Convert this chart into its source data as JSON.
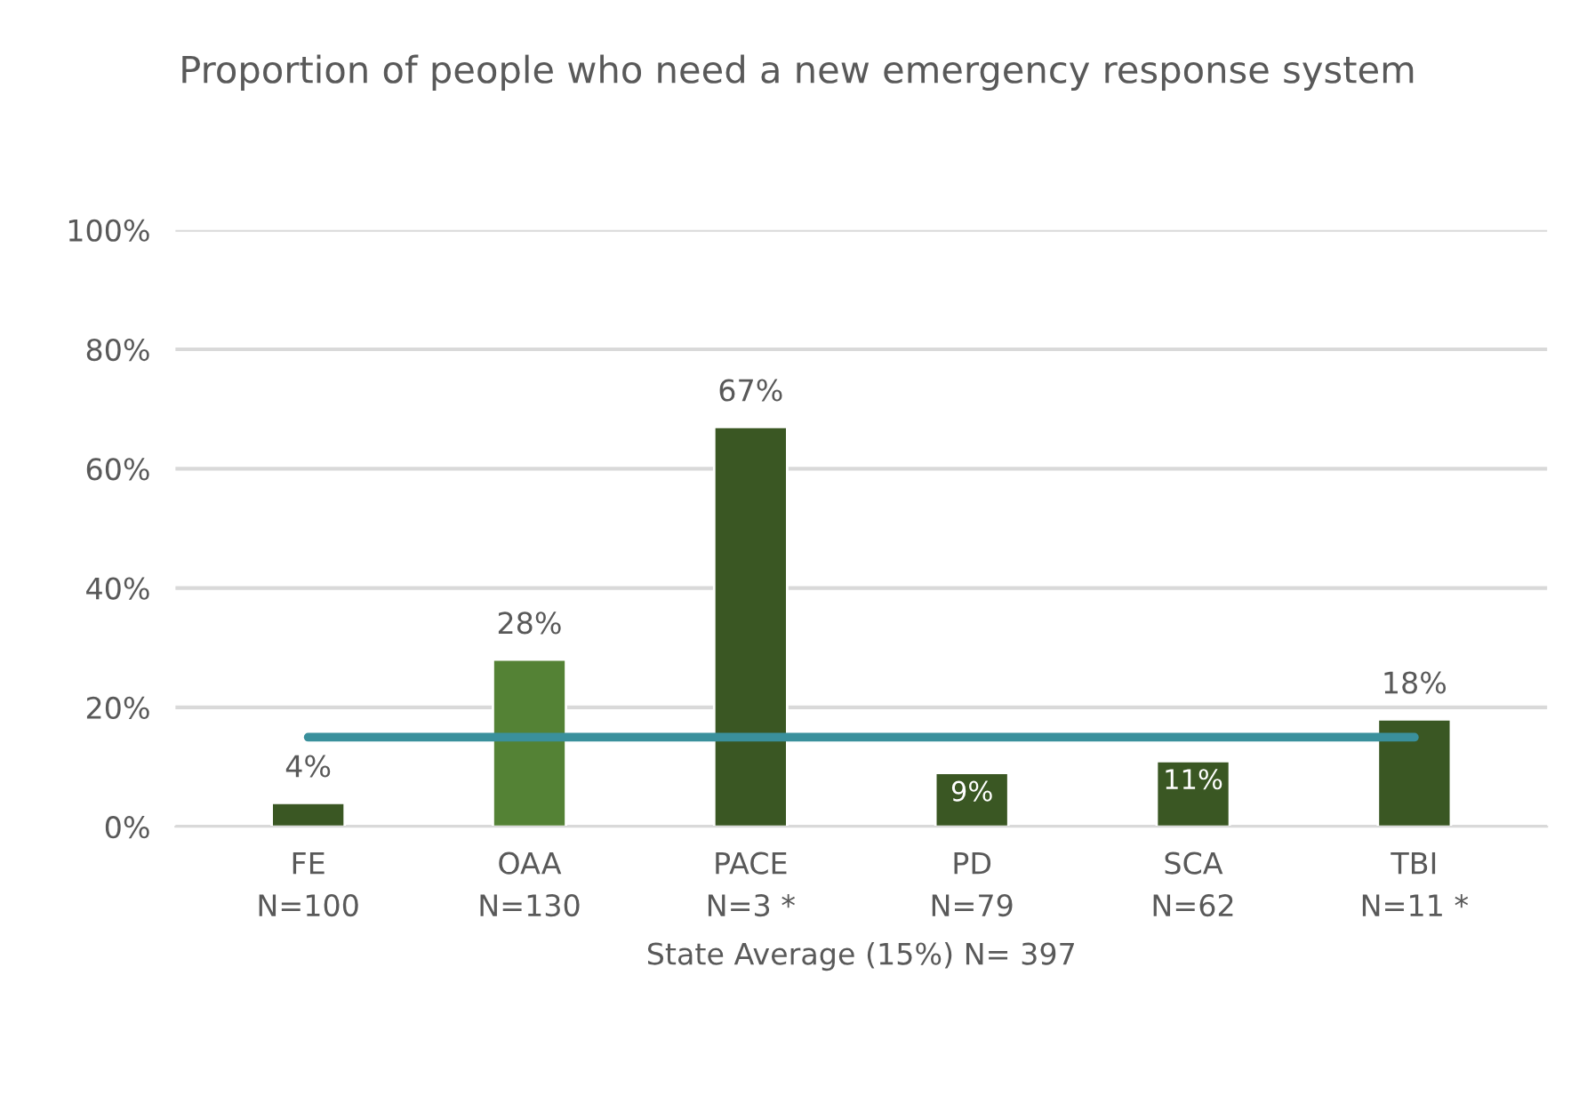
{
  "chart_data": {
    "type": "bar",
    "title": "Proportion of people who need a new emergency response system",
    "xlabel": "State Average (15%) N= 397",
    "categories": [
      "FE\nN=100",
      "OAA\nN=130",
      "PACE\nN=3 *",
      "PD\nN=79",
      "SCA\nN=62",
      "TBI\nN=11 *"
    ],
    "series": [
      {
        "colors": [
          "#3a5723",
          "#548235",
          "#3a5723",
          "#3a5723",
          "#3a5723",
          "#3a5723"
        ],
        "values": [
          4,
          28,
          67,
          9,
          11,
          18
        ],
        "value_labels": [
          "4%",
          "28%",
          "67%",
          "9%",
          "11%",
          "18%"
        ]
      },
      {
        "type": "line",
        "color": "#3a909c",
        "values": [
          15,
          15,
          15,
          15,
          15,
          15
        ]
      }
    ],
    "ylim": [
      0,
      100
    ],
    "yticks": [
      {
        "value": 0,
        "label": "0%"
      },
      {
        "value": 20,
        "label": "20%"
      },
      {
        "value": 40,
        "label": "40%"
      },
      {
        "value": 60,
        "label": "60%"
      },
      {
        "value": 80,
        "label": "80%"
      },
      {
        "value": 100,
        "label": "100%"
      }
    ],
    "grid": "y",
    "legend": false
  }
}
